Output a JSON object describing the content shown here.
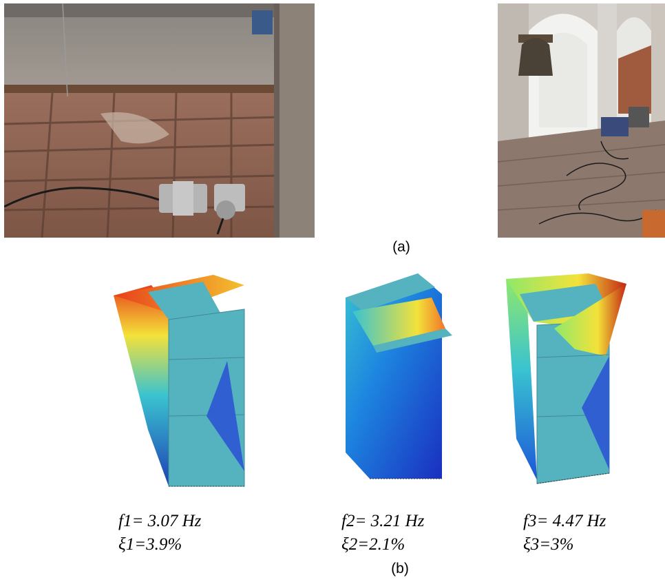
{
  "figure": {
    "caption_a": "(a)",
    "caption_b": "(b)"
  },
  "photos": {
    "left": {
      "subject": "accelerometer sensors on tiled floor"
    },
    "right": {
      "subject": "bell tower with measurement equipment"
    }
  },
  "modes": [
    {
      "freq_label": "f1= 3.07 Hz",
      "damping_label": "ξ1=3.9%",
      "colors": {
        "high": "#e8401a",
        "mid": "#f3e23a",
        "low": "#1d3fb3"
      }
    },
    {
      "freq_label": "f2= 3.21 Hz",
      "damping_label": "ξ2=2.1%",
      "colors": {
        "high": "#f07428",
        "mid": "#3ac3d0",
        "low": "#1a2fc0"
      }
    },
    {
      "freq_label": "f3= 4.47 Hz",
      "damping_label": "ξ3=3%",
      "colors": {
        "high": "#c42714",
        "mid": "#8fe86a",
        "low": "#1b56d8"
      }
    }
  ],
  "colors": {
    "face": "#55b3c0"
  }
}
